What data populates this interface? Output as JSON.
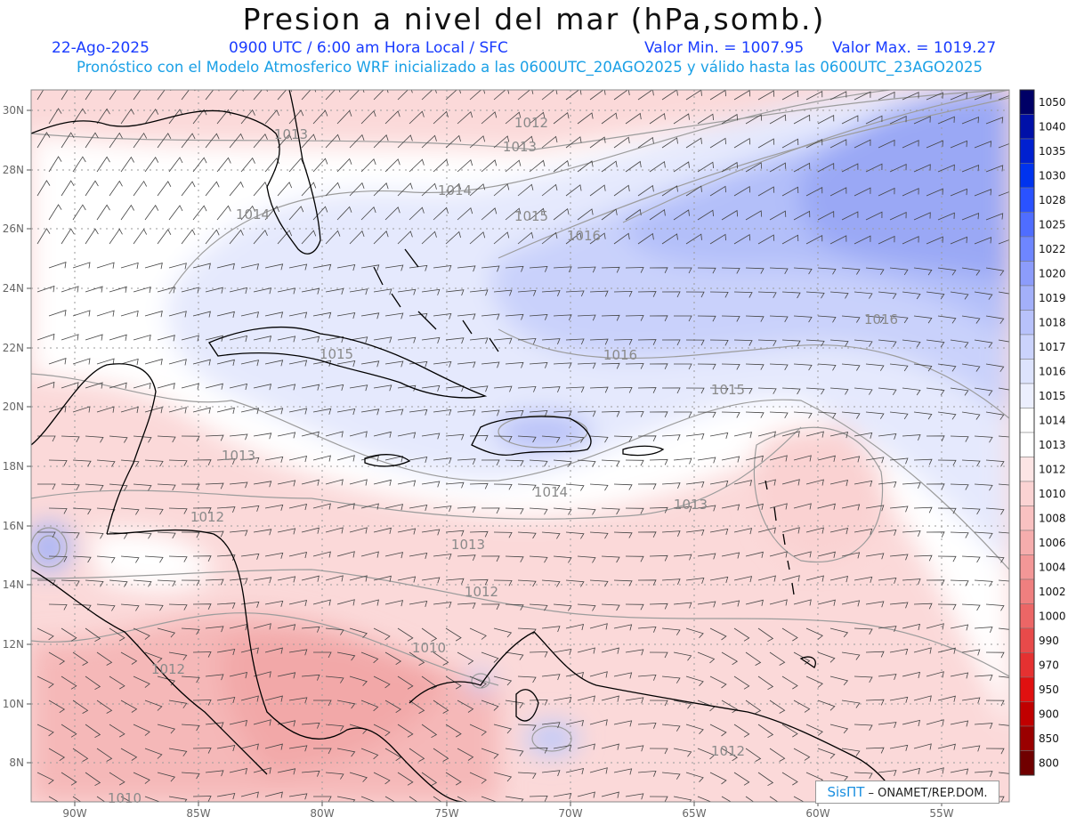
{
  "header": {
    "title": "Presion a nivel del mar (hPa,somb.)",
    "date": "22-Ago-2025",
    "valid_time": "0900 UTC / 6:00 am Hora Local / SFC",
    "min_text": "Valor Min. = 1007.95",
    "max_text": "Valor Max. = 1019.27",
    "subtitle": "Pronóstico con el Modelo Atmosferico WRF inicializado a las 0600UTC_20AGO2025 y válido hasta las  0600UTC_23AGO2025"
  },
  "map": {
    "lon_labels": [
      "90W",
      "85W",
      "80W",
      "75W",
      "70W",
      "65W",
      "60W",
      "55W"
    ],
    "lat_labels": [
      "30N",
      "28N",
      "26N",
      "24N",
      "22N",
      "20N",
      "18N",
      "16N",
      "14N",
      "12N",
      "10N",
      "8N"
    ],
    "contour_labels": [
      "1013",
      "1012",
      "1013",
      "1014",
      "1014",
      "1015",
      "1016",
      "1016",
      "1015",
      "1016",
      "1015",
      "1013",
      "1014",
      "1013",
      "1012",
      "1013",
      "1012",
      "1010",
      "1012",
      "1010",
      "1012"
    ]
  },
  "colorbar": {
    "levels": [
      "1050",
      "1040",
      "1035",
      "1030",
      "1028",
      "1025",
      "1022",
      "1020",
      "1019",
      "1018",
      "1017",
      "1016",
      "1015",
      "1014",
      "1013",
      "1012",
      "1010",
      "1008",
      "1006",
      "1004",
      "1002",
      "1000",
      "990",
      "970",
      "950",
      "900",
      "850",
      "800"
    ],
    "colors": [
      "#000066",
      "#0010a8",
      "#0020d0",
      "#0033ee",
      "#2a52ff",
      "#4f6dff",
      "#6e86ff",
      "#8c9cfb",
      "#a3b0fa",
      "#b8c2fb",
      "#cbd3fc",
      "#dde3fd",
      "#eceffe",
      "#ffffff",
      "#ffffff",
      "#fde5e5",
      "#fbd3d3",
      "#f9c1c1",
      "#f6adad",
      "#f39797",
      "#ef7f7f",
      "#ec6666",
      "#e84a4a",
      "#e53131",
      "#e01010",
      "#c00000",
      "#9a0000",
      "#700000"
    ]
  },
  "credit": {
    "brand": "SisПТ",
    "text": "– ONAMET/REP.DOM."
  }
}
